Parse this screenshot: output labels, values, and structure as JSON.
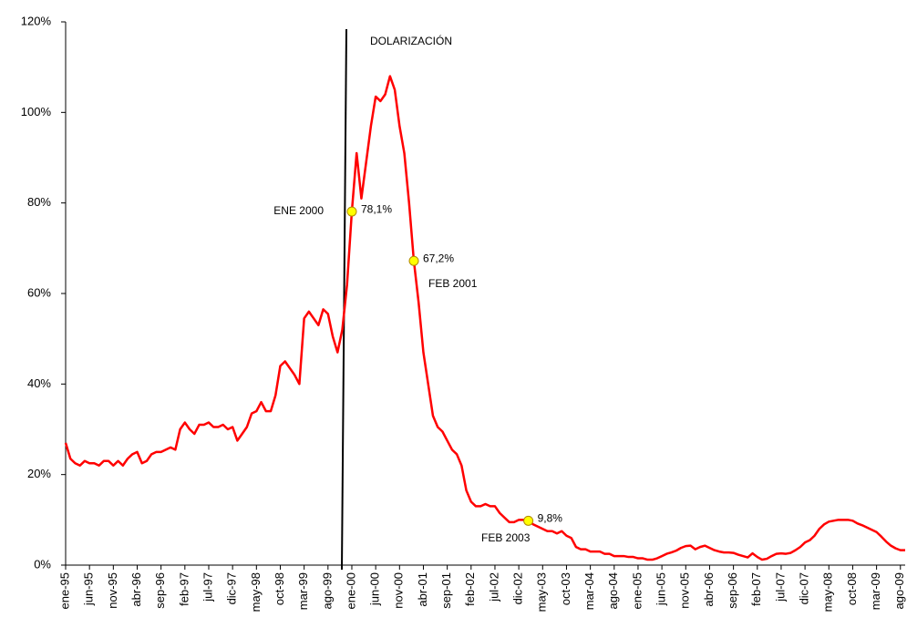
{
  "chart_data": {
    "type": "line",
    "categories": [
      "ene-95",
      null,
      null,
      null,
      null,
      "jun-95",
      null,
      null,
      null,
      null,
      "nov-95",
      null,
      null,
      null,
      null,
      "abr-96",
      null,
      null,
      null,
      null,
      "sep-96",
      null,
      null,
      null,
      null,
      "feb-97",
      null,
      null,
      null,
      null,
      "jul-97",
      null,
      null,
      null,
      null,
      "dic-97",
      null,
      null,
      null,
      null,
      "may-98",
      null,
      null,
      null,
      null,
      "oct-98",
      null,
      null,
      null,
      null,
      "mar-99",
      null,
      null,
      null,
      null,
      "ago-99",
      null,
      null,
      null,
      null,
      "ene-00",
      null,
      null,
      null,
      null,
      "jun-00",
      null,
      null,
      null,
      null,
      "nov-00",
      null,
      null,
      null,
      null,
      "abr-01",
      null,
      null,
      null,
      null,
      "sep-01",
      null,
      null,
      null,
      null,
      "feb-02",
      null,
      null,
      null,
      null,
      "jul-02",
      null,
      null,
      null,
      null,
      "dic-02",
      null,
      null,
      null,
      null,
      "may-03",
      null,
      null,
      null,
      null,
      "oct-03",
      null,
      null,
      null,
      null,
      "mar-04",
      null,
      null,
      null,
      null,
      "ago-04",
      null,
      null,
      null,
      null,
      "ene-05",
      null,
      null,
      null,
      null,
      "jun-05",
      null,
      null,
      null,
      null,
      "nov-05",
      null,
      null,
      null,
      null,
      "abr-06",
      null,
      null,
      null,
      null,
      "sep-06",
      null,
      null,
      null,
      null,
      "feb-07",
      null,
      null,
      null,
      null,
      "jul-07",
      null,
      null,
      null,
      null,
      "dic-07",
      null,
      null,
      null,
      null,
      "may-08",
      null,
      null,
      null,
      null,
      "oct-08",
      null,
      null,
      null,
      null,
      "mar-09",
      null,
      null,
      null,
      null,
      "ago-09",
      null
    ],
    "values": [
      27,
      23.5,
      22.5,
      22,
      23,
      22.5,
      22.5,
      22,
      23,
      23,
      22,
      23,
      22,
      23.5,
      24.5,
      25,
      22.5,
      23,
      24.5,
      25,
      25,
      25.5,
      26,
      25.5,
      30,
      31.5,
      30,
      29,
      31,
      31,
      31.5,
      30.5,
      30.5,
      31,
      30,
      30.5,
      27.5,
      29,
      30.5,
      33.5,
      34,
      36,
      34,
      34,
      37.5,
      44,
      45,
      43.5,
      42,
      40,
      54.5,
      56,
      54.5,
      53,
      56.5,
      55.5,
      50.5,
      47,
      52,
      62,
      78.1,
      91,
      81,
      89,
      97,
      103.5,
      102.5,
      104,
      108,
      105,
      97,
      91,
      80,
      67.2,
      58,
      47,
      40,
      33,
      30.5,
      29.5,
      27.5,
      25.5,
      24.5,
      22,
      16.5,
      14,
      13,
      13,
      13.5,
      13,
      13,
      11.5,
      10.5,
      9.5,
      9.5,
      10,
      10,
      9.8,
      9,
      8.5,
      8,
      7.5,
      7.5,
      7,
      7.5,
      6.5,
      6,
      4,
      3.5,
      3.5,
      3,
      3,
      3,
      2.5,
      2.5,
      2,
      2,
      2,
      1.8,
      1.8,
      1.5,
      1.5,
      1.2,
      1.2,
      1.5,
      2,
      2.5,
      2.8,
      3.2,
      3.8,
      4.2,
      4.3,
      3.5,
      4,
      4.3,
      3.8,
      3.3,
      3,
      2.8,
      2.8,
      2.7,
      2.3,
      2,
      1.7,
      2.6,
      1.8,
      1.2,
      1.4,
      2,
      2.5,
      2.6,
      2.5,
      2.7,
      3.3,
      4,
      5,
      5.5,
      6.5,
      8,
      9,
      9.6,
      9.8,
      10,
      10,
      10,
      9.8,
      9.2,
      8.8,
      8.3,
      7.8,
      7.3,
      6.3,
      5.2,
      4.3,
      3.7,
      3.3,
      3.3
    ],
    "value_labels": [
      null,
      null,
      null,
      null,
      null,
      null,
      null,
      null,
      null,
      null,
      null,
      null,
      null,
      null,
      null,
      null,
      null,
      null,
      null,
      null,
      null,
      null,
      null,
      null,
      null,
      null,
      null,
      null,
      null,
      null,
      null,
      null,
      null,
      null,
      null,
      null,
      null,
      null,
      null,
      null,
      null,
      null,
      null,
      null,
      null,
      null,
      null,
      null,
      null,
      null,
      null,
      null,
      null,
      null,
      null,
      null,
      null,
      null,
      null,
      null,
      "78,1%",
      null,
      null,
      null,
      null,
      null,
      null,
      null,
      null,
      null,
      null,
      null,
      null,
      "67,2%",
      null,
      null,
      null,
      null,
      null,
      null,
      null,
      null,
      null,
      null,
      null,
      null,
      null,
      null,
      null,
      null,
      null,
      null,
      null,
      null,
      null,
      null,
      null,
      "9,8%",
      null,
      null,
      null,
      null,
      null,
      null,
      null,
      null,
      null,
      null,
      null,
      null,
      null,
      null,
      null,
      null,
      null,
      null,
      null,
      null,
      null,
      null,
      null,
      null,
      null,
      null,
      null,
      null,
      null,
      null,
      null,
      null,
      null,
      null,
      null,
      null,
      null,
      null,
      null,
      null,
      null,
      null,
      null,
      null,
      null,
      null,
      null,
      null,
      null,
      null,
      null,
      null,
      null,
      null,
      null,
      null,
      null,
      null,
      null,
      null,
      null,
      null,
      null,
      null,
      null,
      null,
      null,
      null,
      null,
      null,
      null,
      null,
      null,
      null,
      null,
      null,
      null,
      null,
      null
    ],
    "color": "#ff0000",
    "marker_color": "#ffff00",
    "ylim": [
      0,
      120
    ],
    "yticks": [
      {
        "value": 0,
        "label": "0%"
      },
      {
        "value": 20,
        "label": "20%"
      },
      {
        "value": 40,
        "label": "40%"
      },
      {
        "value": 60,
        "label": "60%"
      },
      {
        "value": 80,
        "label": "80%"
      },
      {
        "value": 100,
        "label": "100%"
      },
      {
        "value": 120,
        "label": "120%"
      }
    ],
    "annotations": [
      "DOLARIZACIÓN",
      "ENE 2000",
      "FEB 2001",
      "FEB 2003"
    ]
  }
}
